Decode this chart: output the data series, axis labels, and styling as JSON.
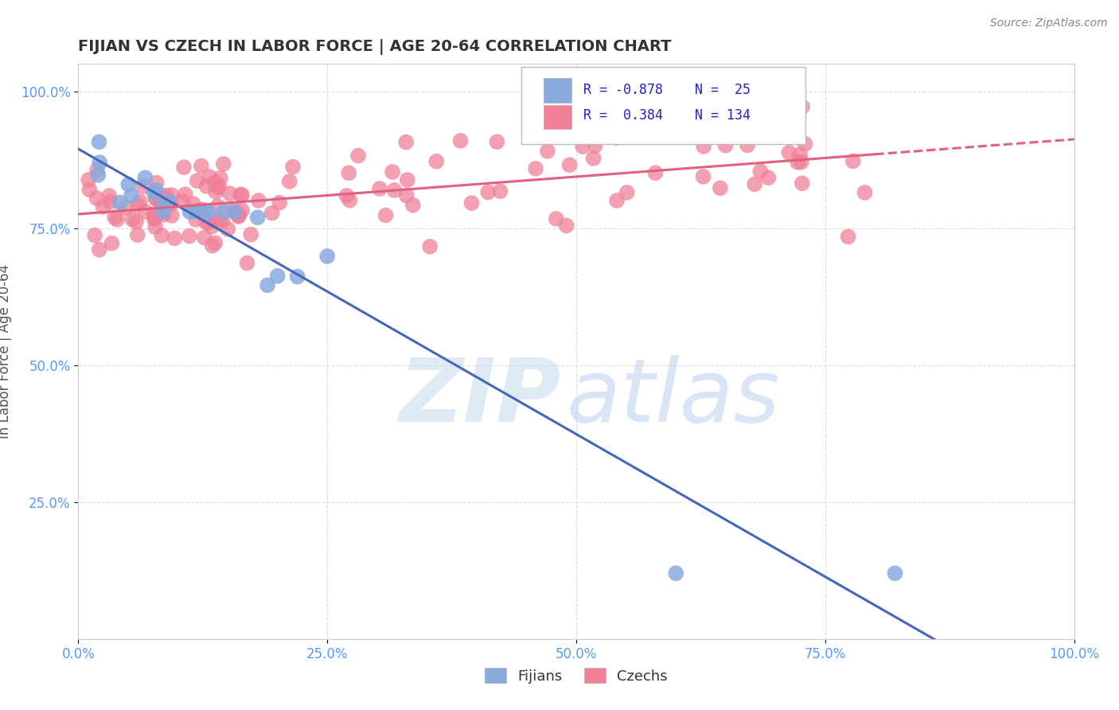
{
  "title": "FIJIAN VS CZECH IN LABOR FORCE | AGE 20-64 CORRELATION CHART",
  "source_text": "Source: ZipAtlas.com",
  "ylabel": "In Labor Force | Age 20-64",
  "fijian_color": "#88aadd",
  "czech_color": "#f08098",
  "fijian_line_color": "#4466bb",
  "czech_line_color": "#e06080",
  "legend_R_fijian": "-0.878",
  "legend_N_fijian": "25",
  "legend_R_czech": "0.384",
  "legend_N_czech": "134",
  "watermark_zip": "ZIP",
  "watermark_atlas": "atlas",
  "background_color": "#ffffff",
  "grid_color": "#dddddd",
  "tick_color": "#5599ff",
  "title_color": "#333333",
  "ylabel_color": "#555555",
  "source_color": "#888888",
  "fijian_line_slope": -0.88,
  "fijian_line_intercept": 0.875,
  "czech_line_slope": 0.12,
  "czech_line_intercept": 0.78
}
